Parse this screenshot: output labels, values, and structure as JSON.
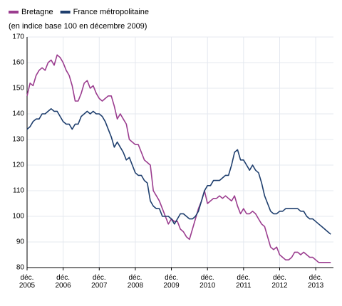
{
  "chart_data": {
    "type": "line",
    "subtitle": "(en indice base 100 en décembre 2009)",
    "categories": [
      "déc. 2005",
      null,
      null,
      null,
      null,
      null,
      null,
      null,
      null,
      null,
      null,
      null,
      "déc. 2006",
      null,
      null,
      null,
      null,
      null,
      null,
      null,
      null,
      null,
      null,
      null,
      "déc. 2007",
      null,
      null,
      null,
      null,
      null,
      null,
      null,
      null,
      null,
      null,
      null,
      "déc. 2008",
      null,
      null,
      null,
      null,
      null,
      null,
      null,
      null,
      null,
      null,
      null,
      "déc. 2009",
      null,
      null,
      null,
      null,
      null,
      null,
      null,
      null,
      null,
      null,
      null,
      "déc. 2010",
      null,
      null,
      null,
      null,
      null,
      null,
      null,
      null,
      null,
      null,
      null,
      "déc. 2011",
      null,
      null,
      null,
      null,
      null,
      null,
      null,
      null,
      null,
      null,
      null,
      "déc. 2012",
      null,
      null,
      null,
      null,
      null,
      null,
      null,
      null,
      null,
      null,
      null,
      "déc. 2013",
      null,
      null,
      null,
      null,
      null
    ],
    "series": [
      {
        "name": "Bretagne",
        "color": "#9b3d8f",
        "values": [
          147,
          152,
          151,
          155,
          157,
          158,
          157,
          160,
          161,
          159,
          163,
          162,
          160,
          157,
          155,
          151,
          145,
          145,
          148,
          152,
          153,
          150,
          151,
          148,
          146,
          145,
          146,
          147,
          147,
          143,
          138,
          140,
          138,
          136,
          130,
          129,
          128,
          128,
          125,
          122,
          121,
          120,
          110,
          108,
          106,
          103,
          100,
          97,
          99,
          98,
          98,
          95,
          94,
          92,
          91,
          95,
          99,
          103,
          106,
          110,
          105,
          106,
          107,
          107,
          108,
          107,
          108,
          107,
          106,
          108,
          104,
          101,
          103,
          101,
          101,
          102,
          101,
          99,
          97,
          96,
          92,
          88,
          87,
          88,
          85,
          84,
          83,
          83,
          84,
          86,
          86,
          85,
          86,
          85,
          84,
          84,
          83,
          82,
          82,
          82,
          82,
          82
        ]
      },
      {
        "name": "France métropolitaine",
        "color": "#1f3f6e",
        "values": [
          134,
          135,
          137,
          138,
          138,
          140,
          140,
          141,
          142,
          141,
          141,
          139,
          137,
          136,
          136,
          134,
          136,
          136,
          139,
          140,
          141,
          140,
          141,
          140,
          140,
          139,
          137,
          134,
          131,
          127,
          129,
          127,
          125,
          122,
          123,
          120,
          117,
          116,
          116,
          114,
          113,
          106,
          104,
          103,
          103,
          100,
          100,
          100,
          99,
          97,
          99,
          101,
          101,
          100,
          99,
          99,
          100,
          102,
          106,
          110,
          112,
          112,
          114,
          114,
          114,
          115,
          116,
          116,
          120,
          125,
          126,
          122,
          122,
          120,
          118,
          120,
          118,
          117,
          113,
          108,
          105,
          102,
          101,
          101,
          102,
          102,
          103,
          103,
          103,
          103,
          103,
          102,
          102,
          100,
          99,
          99,
          98,
          97,
          96,
          95,
          94,
          93
        ]
      }
    ],
    "ylim": [
      80,
      170
    ],
    "yticks": [
      80,
      90,
      100,
      110,
      120,
      130,
      140,
      150,
      160,
      170
    ],
    "grid": true
  }
}
